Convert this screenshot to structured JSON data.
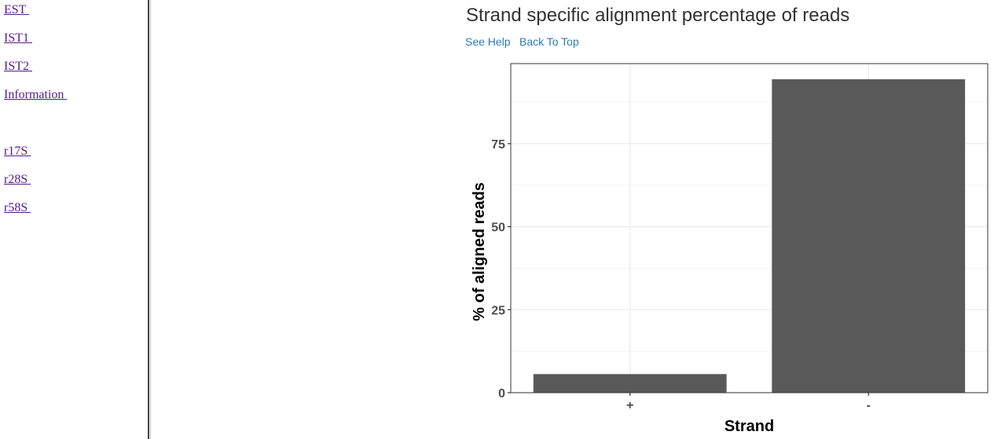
{
  "sidebar": {
    "links": [
      "EST ",
      "IST1 ",
      "IST2 ",
      "Information ",
      "r17S ",
      "r28S ",
      "r58S "
    ]
  },
  "section": {
    "title": "Strand specific alignment percentage of reads",
    "see_help": "See Help",
    "back_to_top": "Back To Top"
  },
  "colors": {
    "bar": "#595959",
    "grid": "#ebebeb",
    "panel_border": "#333333",
    "link": "#2a7ab8",
    "visited_link": "#551a8b"
  },
  "chart_data": {
    "type": "bar",
    "title": "",
    "xlabel": "Strand",
    "ylabel": "% of aligned reads",
    "categories": [
      "+",
      "-"
    ],
    "values": [
      5.6,
      94.4
    ],
    "ylim": [
      0,
      99.1
    ],
    "yticks": [
      0,
      25,
      50,
      75
    ],
    "grid": true,
    "legend": "none"
  }
}
